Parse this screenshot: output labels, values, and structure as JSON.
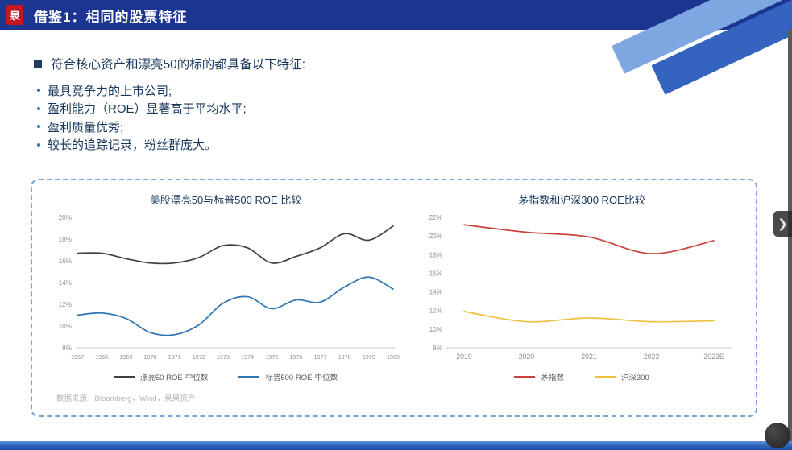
{
  "header": {
    "logo_text": "泉",
    "title": "借鉴1：相同的股票特征"
  },
  "content": {
    "heading": "符合核心资产和漂亮50的标的都具备以下特征:",
    "bullets": [
      "最具竞争力的上市公司;",
      "盈利能力（ROE）显著高于平均水平;",
      "盈利质量优秀;",
      "较长的追踪记录，粉丝群庞大。"
    ],
    "source": "数据来源：Bloomberg，Wind，泉果资产"
  },
  "chart_data": [
    {
      "type": "line",
      "title": "美股漂亮50与标普500 ROE 比较",
      "x": [
        "1967",
        "1968",
        "1969",
        "1970",
        "1971",
        "1972",
        "1973",
        "1974",
        "1975",
        "1976",
        "1977",
        "1978",
        "1979",
        "1980"
      ],
      "series": [
        {
          "name": "漂亮50 ROE-中位数",
          "color": "#404040",
          "values": [
            16.7,
            16.7,
            16.2,
            15.8,
            15.8,
            16.3,
            17.4,
            17.2,
            15.8,
            16.4,
            17.2,
            18.5,
            17.9,
            19.2
          ]
        },
        {
          "name": "标普500 ROE-中位数",
          "color": "#2e75b6",
          "values": [
            11.0,
            11.2,
            10.7,
            9.4,
            9.2,
            10.1,
            12.1,
            12.7,
            11.6,
            12.4,
            12.2,
            13.6,
            14.5,
            13.4
          ]
        }
      ],
      "xlabel": "",
      "ylabel": "",
      "ylim": [
        8,
        20
      ],
      "ytick_step": 2,
      "ytick_suffix": "%",
      "grid": false,
      "legend_position": "bottom"
    },
    {
      "type": "line",
      "title": "茅指数和沪深300 ROE比较",
      "x": [
        "2019",
        "2020",
        "2021",
        "2022",
        "2023E"
      ],
      "series": [
        {
          "name": "茅指数",
          "color": "#c9433c",
          "values": [
            21.2,
            20.4,
            19.9,
            18.1,
            19.5
          ]
        },
        {
          "name": "沪深300",
          "color": "#eec13f",
          "values": [
            11.9,
            10.8,
            11.2,
            10.8,
            10.9
          ]
        }
      ],
      "xlabel": "",
      "ylabel": "",
      "ylim": [
        8,
        22
      ],
      "ytick_step": 2,
      "ytick_suffix": "%",
      "grid": false,
      "legend_position": "bottom"
    }
  ],
  "player": {
    "next_label": "❯"
  }
}
